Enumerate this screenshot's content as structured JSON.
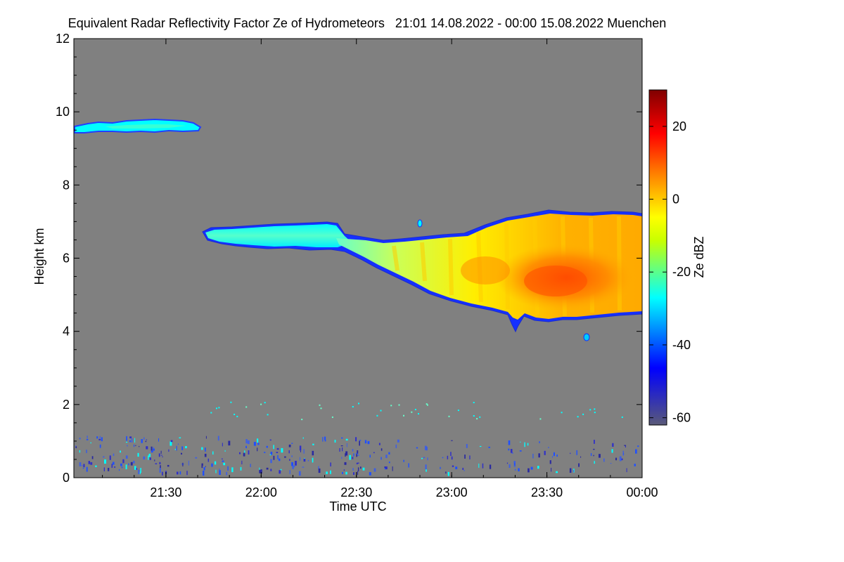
{
  "chart_data": {
    "type": "heatmap",
    "title": "Equivalent Radar Reflectivity Factor Ze of Hydrometeors   21:01 14.08.2022 - 00:00 15.08.2022 Muenchen",
    "xlabel": "Time UTC",
    "ylabel": "Height km",
    "colorbar_label": "Ze dBZ",
    "x_range": [
      "21:01",
      "00:00"
    ],
    "ylim": [
      0,
      12
    ],
    "zlim": [
      -62,
      30
    ],
    "x_ticks": [
      "21:30",
      "22:00",
      "22:30",
      "23:00",
      "23:30",
      "00:00"
    ],
    "y_ticks": [
      "0",
      "2",
      "4",
      "6",
      "8",
      "10",
      "12"
    ],
    "colorbar_ticks": [
      "20",
      "0",
      "-20",
      "-40",
      "-60"
    ],
    "background_color": "#808080",
    "colormap": [
      "#5a5a78",
      "#0000ff",
      "#00ffff",
      "#ffff00",
      "#ff7f00",
      "#ff0000",
      "#8b0000"
    ],
    "features": [
      {
        "name": "cirrus layer",
        "time": [
          "21:01",
          "21:45"
        ],
        "height_km": [
          9.4,
          9.8
        ],
        "ze_dbz": -25
      },
      {
        "name": "mid-level cloud",
        "time": [
          "21:45",
          "22:50"
        ],
        "height_km": [
          5.8,
          6.9
        ],
        "ze_dbz": -22
      },
      {
        "name": "precipitating cloud",
        "time": [
          "22:30",
          "00:00"
        ],
        "height_km": [
          4.3,
          7.2
        ],
        "ze_dbz": 5
      },
      {
        "name": "core",
        "time": [
          "23:20",
          "23:55"
        ],
        "height_km": [
          4.8,
          6.5
        ],
        "ze_dbz": 12
      },
      {
        "name": "low clutter",
        "time": [
          "21:01",
          "00:00"
        ],
        "height_km": [
          0.1,
          1.5
        ],
        "ze_dbz": -40
      }
    ]
  }
}
